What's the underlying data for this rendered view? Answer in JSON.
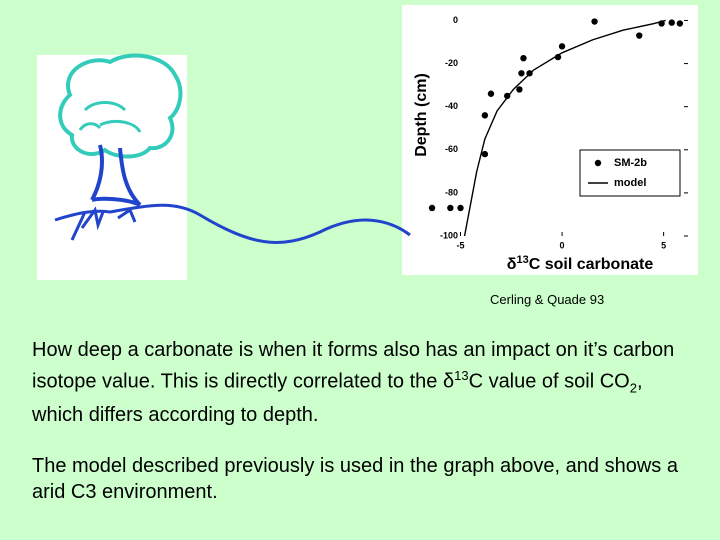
{
  "chart_data": {
    "type": "scatter",
    "ylabel": "Depth (cm)",
    "xlabel": [
      "δ",
      "13",
      "C soil carbonate"
    ],
    "xlim": [
      -6.6,
      6.2
    ],
    "xticks": [
      -5,
      0,
      5
    ],
    "ylim": [
      -100,
      3
    ],
    "yticks": [
      0,
      -20,
      -40,
      -60,
      -80,
      -100
    ],
    "legend": "lower right",
    "series": [
      {
        "name": "SM-2b",
        "type": "scatter",
        "color": "#000000",
        "x": [
          1.6,
          4.9,
          5.4,
          5.8,
          3.8,
          0,
          -0.2,
          -1.9,
          -1.6,
          -2,
          -2.1,
          -2.7,
          -3.5,
          -3.8,
          -3.8,
          -6.4,
          -5.5,
          -5
        ],
        "values": [
          -0.5,
          -1.4,
          -1,
          -1.4,
          -7,
          -12,
          -17,
          -17.5,
          -24.5,
          -24.5,
          -32,
          -35,
          -34,
          -44,
          -62,
          -87,
          -87,
          -87
        ]
      },
      {
        "name": "model",
        "type": "line",
        "color": "#000000",
        "x": [
          -4.8,
          -4.5,
          -4.2,
          -3.8,
          -3.2,
          -2.4,
          -1.4,
          0,
          1.5,
          3,
          4.5,
          5.1
        ],
        "values": [
          -100,
          -85,
          -70,
          -55,
          -42,
          -32,
          -23,
          -15,
          -9,
          -4.5,
          -1.5,
          0
        ]
      }
    ]
  },
  "citation": "Cerling & Quade 93",
  "paragraphs": [
    [
      "How deep a carbonate is when it forms also has an impact on it’s carbon isotope value. This is directly correlated to the ",
      "δ",
      "13",
      "C value of soil CO",
      "2",
      ", which differs according to depth."
    ],
    [
      "The model described previously is used in the graph above, and shows a arid C3 environment."
    ]
  ]
}
